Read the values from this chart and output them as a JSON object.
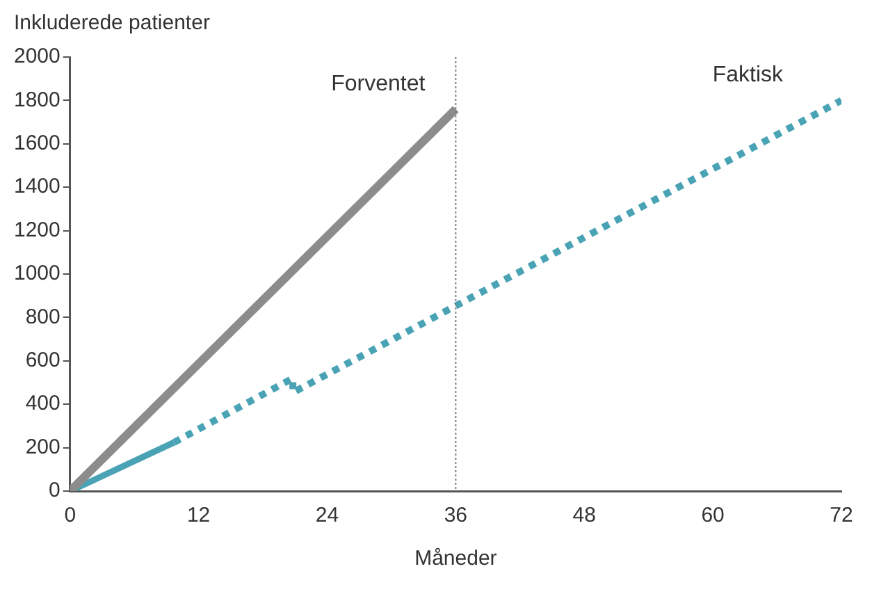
{
  "chart_data": {
    "type": "line",
    "ylabel": "Inkluderede patienter",
    "xlabel": "Måneder",
    "xlim": [
      0,
      72
    ],
    "xticks": [
      0,
      12,
      24,
      36,
      48,
      60,
      72
    ],
    "ylim": [
      0,
      2000
    ],
    "yticks": [
      0,
      200,
      400,
      600,
      800,
      1000,
      1200,
      1400,
      1600,
      1800,
      2000
    ],
    "grid": false,
    "legend": false,
    "marker": "none",
    "series": [
      {
        "name": "Forventet",
        "color": "#8c8c8c",
        "x": [
          0,
          36
        ],
        "values": [
          0,
          1760
        ],
        "line_style": "solid"
      },
      {
        "color": "#4aa3b5",
        "x": [
          0,
          9.7
        ],
        "values": [
          0,
          224
        ],
        "line_style": "solid"
      },
      {
        "name": "Faktisk",
        "color": "#4aa3b5",
        "x": [
          9.7,
          20.8,
          20.8,
          72
        ],
        "values": [
          224,
          520,
          454,
          1800
        ],
        "line_style": "dotted"
      }
    ],
    "ref_lines": [
      {
        "axis": "x",
        "value": 36,
        "color": "#7f7f7f",
        "line_style": "dotted"
      }
    ]
  }
}
